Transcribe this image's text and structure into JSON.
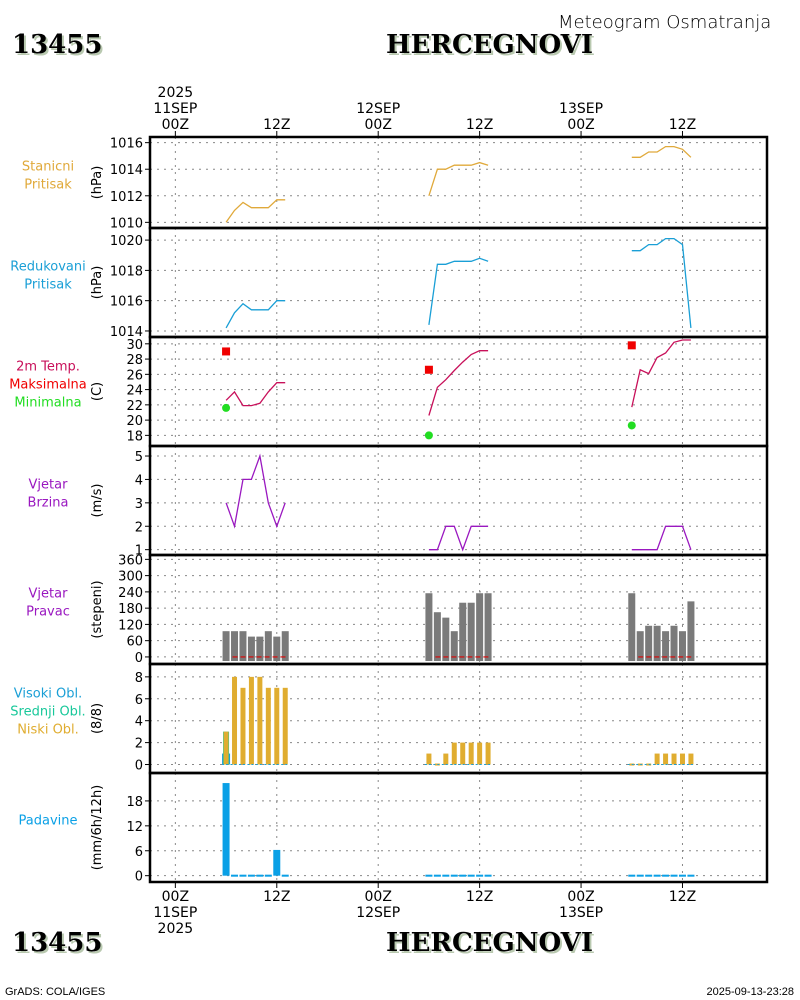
{
  "header": {
    "station_id": "13455",
    "station_name": "HERCEGNOVI",
    "subtitle": "Meteogram Osmatranja"
  },
  "footer": {
    "station_id": "13455",
    "station_name": "HERCEGNOVI",
    "credit": "GrADS: COLA/IGES",
    "timestamp": "2025-09-13-23:28"
  },
  "colors": {
    "stanicni": "#e0a93a",
    "redukovani": "#1a9fd6",
    "temp": "#c8105a",
    "max": "#f00000",
    "min": "#22dd22",
    "wind": "#9a18c0",
    "direction_bar": "#7a7a7a",
    "direction_zero": "#e00000",
    "cloud_high": "#1a9fd6",
    "cloud_mid": "#18c89a",
    "cloud_low": "#e0ad30",
    "precip": "#0aa0e6"
  },
  "chart_data": [
    {
      "id": "stanicni",
      "type": "line",
      "title_lines": [
        "Stanicni",
        "Pritisak"
      ],
      "ylabel": "(hPa)",
      "ylim": [
        1009.8,
        1016.2
      ],
      "yticks": [
        1010,
        1012,
        1014,
        1016
      ],
      "grid": true,
      "x_hours": [
        6,
        7,
        8,
        9,
        10,
        11,
        12,
        13,
        30,
        31,
        32,
        33,
        34,
        35,
        36,
        37,
        54,
        55,
        56,
        57,
        58,
        59,
        60,
        61
      ],
      "series": [
        {
          "name": "Stanicni Pritisak",
          "values": [
            1010.0,
            1010.9,
            1011.5,
            1011.1,
            1011.1,
            1011.1,
            1011.7,
            1011.7,
            1012.0,
            1014.0,
            1014.0,
            1014.3,
            1014.3,
            1014.3,
            1014.5,
            1014.3,
            1014.9,
            1014.9,
            1015.3,
            1015.3,
            1015.7,
            1015.7,
            1015.5,
            1014.9
          ]
        }
      ]
    },
    {
      "id": "redukovani",
      "type": "line",
      "title_lines": [
        "Redukovani",
        "Pritisak"
      ],
      "ylabel": "(hPa)",
      "ylim": [
        1013.8,
        1020.6
      ],
      "yticks": [
        1014,
        1016,
        1018,
        1020
      ],
      "grid": true,
      "x_hours": [
        6,
        7,
        8,
        9,
        10,
        11,
        12,
        13,
        30,
        31,
        32,
        33,
        34,
        35,
        36,
        37,
        54,
        55,
        56,
        57,
        58,
        59,
        60,
        61
      ],
      "series": [
        {
          "name": "Redukovani Pritisak",
          "values": [
            1014.2,
            1015.2,
            1015.8,
            1015.4,
            1015.4,
            1015.4,
            1016.0,
            1016.0,
            1014.4,
            1018.4,
            1018.4,
            1018.6,
            1018.6,
            1018.6,
            1018.8,
            1018.6,
            1019.3,
            1019.3,
            1019.7,
            1019.7,
            1020.1,
            1020.1,
            1019.7,
            1014.2
          ]
        }
      ]
    },
    {
      "id": "temperatura",
      "type": "line",
      "title_lines": [
        "2m Temp.",
        "Maksimalna",
        "Minimalna"
      ],
      "ylabel": "(C)",
      "ylim": [
        17,
        30.5
      ],
      "yticks": [
        18,
        20,
        22,
        24,
        26,
        28,
        30
      ],
      "grid": true,
      "x_hours": [
        6,
        7,
        8,
        9,
        10,
        11,
        12,
        13,
        30,
        31,
        32,
        33,
        34,
        35,
        36,
        37,
        54,
        55,
        56,
        57,
        58,
        59,
        60,
        61
      ],
      "series": [
        {
          "name": "2m Temp.",
          "values": [
            22.6,
            23.7,
            21.9,
            21.9,
            22.2,
            23.7,
            24.9,
            24.9,
            20.6,
            24.3,
            25.3,
            26.5,
            27.6,
            28.6,
            29.1,
            29.1,
            21.7,
            26.6,
            26.1,
            28.2,
            28.8,
            30.2,
            30.5,
            30.5
          ]
        }
      ],
      "max_points": [
        {
          "hour": 6,
          "value": 29.0
        },
        {
          "hour": 30,
          "value": 26.6
        },
        {
          "hour": 54,
          "value": 29.8
        }
      ],
      "min_points": [
        {
          "hour": 6,
          "value": 21.6
        },
        {
          "hour": 30,
          "value": 18.0
        },
        {
          "hour": 54,
          "value": 19.3
        }
      ]
    },
    {
      "id": "vjetar_brzina",
      "type": "line",
      "title_lines": [
        "Vjetar",
        "Brzina"
      ],
      "ylabel": "(m/s)",
      "ylim": [
        0.9,
        5.3
      ],
      "yticks": [
        1,
        2,
        3,
        4,
        5
      ],
      "grid": true,
      "x_hours": [
        6,
        7,
        8,
        9,
        10,
        11,
        12,
        13,
        30,
        31,
        32,
        33,
        34,
        35,
        36,
        37,
        54,
        55,
        56,
        57,
        58,
        59,
        60,
        61
      ],
      "series": [
        {
          "name": "Vjetar Brzina",
          "values": [
            3,
            2,
            4,
            4,
            5,
            3,
            2,
            3,
            1,
            1,
            2,
            2,
            1,
            2,
            2,
            2,
            1,
            1,
            1,
            1,
            2,
            2,
            2,
            1
          ]
        }
      ]
    },
    {
      "id": "vjetar_pravac",
      "type": "bar",
      "title_lines": [
        "Vjetar",
        "Pravac"
      ],
      "ylabel": "(stepeni)",
      "ylim": [
        -15,
        365
      ],
      "yticks": [
        0,
        60,
        120,
        180,
        240,
        300,
        360
      ],
      "grid": true,
      "x_hours": [
        6,
        7,
        8,
        9,
        10,
        11,
        12,
        13,
        30,
        31,
        32,
        33,
        34,
        35,
        36,
        37,
        54,
        55,
        56,
        57,
        58,
        59,
        60,
        61
      ],
      "series": [
        {
          "name": "Vjetar Pravac",
          "values": [
            95,
            95,
            95,
            75,
            75,
            95,
            75,
            95,
            235,
            165,
            145,
            95,
            200,
            200,
            235,
            235,
            235,
            95,
            115,
            115,
            95,
            115,
            95,
            205
          ]
        }
      ],
      "zero_segments": [
        [
          7,
          13
        ],
        [
          31,
          37
        ],
        [
          55,
          61
        ]
      ]
    },
    {
      "id": "oblacnost",
      "type": "bar",
      "title_lines": [
        "Visoki Obl.",
        "Srednji Obl.",
        "Niski Obl."
      ],
      "ylabel": "(8/8)",
      "ylim": [
        -0.5,
        8.9
      ],
      "yticks": [
        0,
        2,
        4,
        6,
        8
      ],
      "grid": true,
      "x_hours": [
        6,
        7,
        8,
        9,
        10,
        11,
        12,
        13,
        30,
        31,
        32,
        33,
        34,
        35,
        36,
        37,
        54,
        55,
        56,
        57,
        58,
        59,
        60,
        61
      ],
      "series": [
        {
          "name": "Visoki Obl.",
          "values": [
            1,
            0,
            0,
            0,
            0,
            0,
            0,
            0,
            0,
            0,
            0,
            0,
            0,
            0,
            0,
            0,
            0,
            0,
            0,
            0,
            0,
            0,
            0,
            0
          ]
        },
        {
          "name": "Srednji Obl.",
          "values": [
            3,
            0,
            0,
            0,
            0,
            0,
            0,
            0,
            0,
            0,
            0,
            0,
            0,
            0,
            0,
            0,
            0,
            0,
            0,
            0,
            0,
            0,
            0,
            0
          ]
        },
        {
          "name": "Niski Obl.",
          "values": [
            3,
            8,
            7,
            8,
            8,
            7,
            7,
            7,
            1,
            0,
            1,
            2,
            2,
            2,
            2,
            2,
            0,
            0,
            0,
            1,
            1,
            1,
            1,
            1
          ]
        }
      ]
    },
    {
      "id": "padavine",
      "type": "bar",
      "title_lines": [
        "Padavine"
      ],
      "ylabel": "(mm/6h/12h)",
      "ylim": [
        -0.8,
        24
      ],
      "yticks": [
        0,
        6,
        12,
        18
      ],
      "grid": true,
      "x_hours": [
        6,
        7,
        8,
        9,
        10,
        11,
        12,
        13,
        30,
        31,
        32,
        33,
        34,
        35,
        36,
        37,
        54,
        55,
        56,
        57,
        58,
        59,
        60,
        61
      ],
      "series": [
        {
          "name": "Padavine",
          "values": [
            22.3,
            0,
            0,
            0,
            0,
            0,
            6.2,
            0,
            0,
            0,
            0,
            0,
            0,
            0,
            0,
            0,
            0,
            0,
            0,
            0,
            0,
            0,
            0,
            0
          ]
        }
      ]
    }
  ],
  "time_axis": {
    "xlim_hours": [
      -3,
      70
    ],
    "ticks": [
      {
        "hour": 0,
        "top": [
          "2025",
          "11SEP",
          "00Z"
        ],
        "bottom": [
          "00Z",
          "11SEP",
          "2025"
        ]
      },
      {
        "hour": 12,
        "top": [
          "12Z"
        ],
        "bottom": [
          "12Z"
        ]
      },
      {
        "hour": 24,
        "top": [
          "12SEP",
          "00Z"
        ],
        "bottom": [
          "00Z",
          "12SEP"
        ]
      },
      {
        "hour": 36,
        "top": [
          "12Z"
        ],
        "bottom": [
          "12Z"
        ]
      },
      {
        "hour": 48,
        "top": [
          "13SEP",
          "00Z"
        ],
        "bottom": [
          "00Z",
          "13SEP"
        ]
      },
      {
        "hour": 60,
        "top": [
          "12Z"
        ],
        "bottom": [
          "12Z"
        ]
      }
    ],
    "minor_grid_hours": [
      0,
      12,
      24,
      36,
      48,
      60
    ]
  }
}
